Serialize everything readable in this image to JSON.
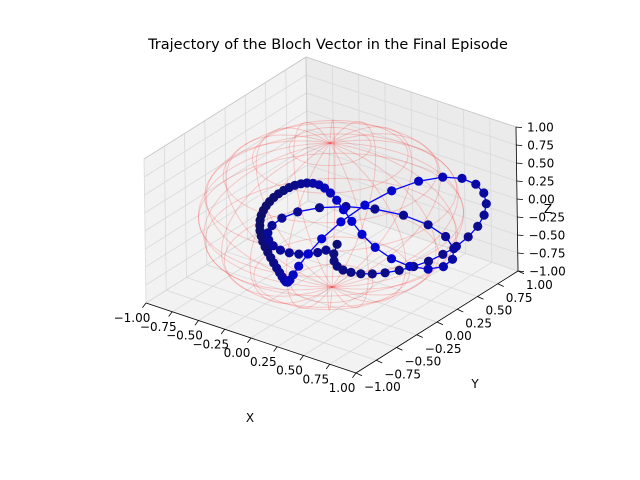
{
  "chart_data": {
    "type": "scatter",
    "projection": "3d",
    "title": "Trajectory of the Bloch Vector in the Final Episode",
    "xlabel": "X",
    "ylabel": "Y",
    "zlabel": "Z",
    "xlim": [
      -1.0,
      1.0
    ],
    "ylim": [
      -1.0,
      1.0
    ],
    "zlim": [
      -1.0,
      1.0
    ],
    "x_ticks": [
      "−1.00",
      "−0.75",
      "−0.50",
      "−0.25",
      "0.00",
      "0.25",
      "0.50",
      "0.75",
      "1.00"
    ],
    "y_ticks": [
      "−1.00",
      "−0.75",
      "−0.50",
      "−0.25",
      "0.00",
      "0.25",
      "0.50",
      "0.75",
      "1.00"
    ],
    "z_ticks": [
      "−1.00",
      "−0.75",
      "−0.50",
      "−0.25",
      "0.00",
      "0.25",
      "0.50",
      "0.75",
      "1.00"
    ],
    "grid": true,
    "reference_surface": {
      "shape": "unit sphere wireframe",
      "color": "#ff0000",
      "opacity": 0.15
    },
    "series": [
      {
        "marker": "circle",
        "line": true,
        "color": "#0000ff",
        "points": [
          [
            -0.18,
            0.3,
            -0.707
          ],
          [
            -0.153,
            0.223,
            -0.773
          ],
          [
            -0.115,
            0.177,
            -0.82
          ],
          [
            -0.069,
            0.156,
            -0.855
          ],
          [
            -0.015,
            0.157,
            -0.882
          ],
          [
            0.045,
            0.177,
            -0.901
          ],
          [
            0.111,
            0.213,
            -0.913
          ],
          [
            0.181,
            0.264,
            -0.917
          ],
          [
            0.254,
            0.328,
            -0.911
          ],
          [
            0.329,
            0.404,
            -0.895
          ],
          [
            0.403,
            0.488,
            -0.865
          ],
          [
            0.475,
            0.578,
            -0.82
          ],
          [
            0.543,
            0.668,
            -0.757
          ],
          [
            0.606,
            0.754,
            -0.675
          ],
          [
            0.662,
            0.829,
            -0.57
          ],
          [
            0.709,
            0.887,
            -0.442
          ],
          [
            0.746,
            0.919,
            -0.29
          ],
          [
            0.772,
            0.915,
            -0.116
          ],
          [
            0.787,
            0.867,
            0.074
          ],
          [
            0.79,
            0.767,
            0.269
          ],
          [
            0.781,
            0.611,
            0.455
          ],
          [
            0.762,
            0.399,
            0.614
          ],
          [
            0.731,
            0.143,
            0.723
          ],
          [
            0.69,
            -0.135,
            0.767
          ],
          [
            0.64,
            -0.402,
            0.733
          ],
          [
            0.582,
            -0.624,
            0.629
          ],
          [
            0.517,
            -0.779,
            0.472
          ],
          [
            0.446,
            -0.86,
            0.285
          ],
          [
            0.37,
            -0.877,
            0.09
          ],
          [
            0.29,
            -0.844,
            -0.092
          ],
          [
            0.208,
            -0.78,
            -0.249
          ],
          [
            0.124,
            -0.699,
            -0.377
          ],
          [
            0.039,
            -0.612,
            -0.477
          ],
          [
            -0.045,
            -0.525,
            -0.552
          ],
          [
            -0.13,
            -0.443,
            -0.606
          ],
          [
            -0.213,
            -0.366,
            -0.644
          ],
          [
            -0.294,
            -0.297,
            -0.668
          ],
          [
            -0.372,
            -0.233,
            -0.681
          ],
          [
            -0.445,
            -0.176,
            -0.684
          ],
          [
            -0.512,
            -0.125,
            -0.679
          ],
          [
            -0.573,
            -0.079,
            -0.666
          ],
          [
            -0.626,
            -0.038,
            -0.646
          ],
          [
            -0.67,
            -0.001,
            -0.618
          ],
          [
            -0.706,
            0.031,
            -0.584
          ],
          [
            -0.73,
            0.06,
            -0.543
          ],
          [
            -0.745,
            0.084,
            -0.495
          ],
          [
            -0.748,
            0.104,
            -0.441
          ],
          [
            -0.739,
            0.119,
            -0.38
          ],
          [
            -0.719,
            0.128,
            -0.314
          ],
          [
            -0.688,
            0.131,
            -0.241
          ],
          [
            -0.646,
            0.128,
            -0.162
          ],
          [
            -0.592,
            0.118,
            -0.077
          ],
          [
            -0.528,
            0.1,
            0.013
          ],
          [
            -0.454,
            0.073,
            0.108
          ],
          [
            -0.37,
            0.037,
            0.206
          ],
          [
            -0.277,
            -0.008,
            0.305
          ],
          [
            -0.177,
            -0.063,
            0.403
          ],
          [
            -0.07,
            -0.126,
            0.496
          ],
          [
            0.041,
            -0.196,
            0.578
          ],
          [
            0.154,
            -0.271,
            0.642
          ],
          [
            0.268,
            -0.345,
            0.68
          ],
          [
            0.38,
            -0.414,
            0.683
          ],
          [
            0.487,
            -0.469,
            0.641
          ],
          [
            0.588,
            -0.499,
            0.55
          ],
          [
            0.678,
            -0.491,
            0.408
          ],
          [
            0.756,
            -0.431,
            0.223
          ],
          [
            0.818,
            -0.313,
            0.013
          ],
          [
            0.86,
            -0.145,
            -0.193
          ],
          [
            0.88,
            0.054,
            -0.362
          ],
          [
            0.872,
            0.251,
            -0.47
          ],
          [
            0.831,
            0.417,
            -0.506
          ],
          [
            0.755,
            0.532,
            -0.477
          ],
          [
            0.639,
            0.581,
            -0.4
          ],
          [
            0.49,
            0.56,
            -0.295
          ],
          [
            0.321,
            0.477,
            -0.185
          ],
          [
            0.15,
            0.347,
            -0.089
          ],
          [
            -0.005,
            0.191,
            -0.02
          ],
          [
            -0.131,
            0.028,
            0.018
          ],
          [
            -0.221,
            -0.124,
            0.024
          ],
          [
            -0.274,
            -0.251,
            0.001
          ],
          [
            -0.295,
            -0.346,
            -0.044
          ],
          [
            -0.29,
            -0.404,
            -0.104
          ],
          [
            -0.266,
            -0.427,
            -0.172
          ],
          [
            -0.229,
            -0.42,
            -0.24
          ],
          [
            -0.185,
            -0.388,
            -0.302
          ],
          [
            -0.139,
            -0.339,
            -0.353
          ],
          [
            -0.093,
            -0.28,
            -0.39
          ],
          [
            -0.052,
            -0.215,
            -0.413
          ],
          [
            -0.015,
            -0.15,
            -0.422
          ],
          [
            0.016,
            -0.088,
            -0.418
          ]
        ]
      }
    ]
  }
}
